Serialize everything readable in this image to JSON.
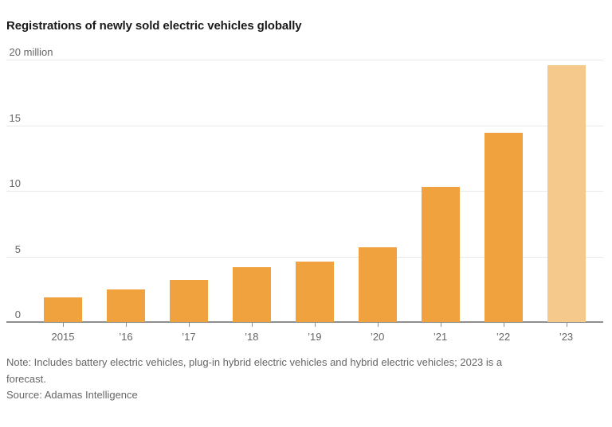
{
  "title": "Registrations of newly sold electric vehicles globally",
  "note": "Note: Includes battery electric vehicles, plug-in hybrid electric vehicles and hybrid electric vehicles; 2023 is a\nforecast.",
  "source": "Source: Adamas Intelligence",
  "colors": {
    "bar": "#efa23d",
    "forecast_bar": "#f5c98c",
    "gridline": "#e9e9e9",
    "baseline": "#8f8f8f",
    "title_text": "#1a1a1a",
    "axis_text": "#666666"
  },
  "chart_data": {
    "type": "bar",
    "title": "Registrations of newly sold electric vehicles globally",
    "unit": "million vehicles",
    "categories": [
      "2015",
      "’16",
      "’17",
      "’18",
      "’19",
      "’20",
      "’21",
      "’22",
      "’23"
    ],
    "values": [
      1.9,
      2.5,
      3.2,
      4.2,
      4.6,
      5.7,
      10.3,
      14.4,
      19.6
    ],
    "forecast_indices": [
      8
    ],
    "ylim": [
      0,
      20
    ],
    "y_ticks": [
      {
        "value": 0,
        "label": "0",
        "suffix": ""
      },
      {
        "value": 5,
        "label": "5",
        "suffix": ""
      },
      {
        "value": 10,
        "label": "10",
        "suffix": ""
      },
      {
        "value": 15,
        "label": "15",
        "suffix": ""
      },
      {
        "value": 20,
        "label": "20",
        "suffix": " million"
      }
    ],
    "grid": "horizontal",
    "legend": "none",
    "xlabel": "",
    "ylabel": "million",
    "bar_color": "#efa23d",
    "forecast_bar_color": "#f5c98c"
  }
}
